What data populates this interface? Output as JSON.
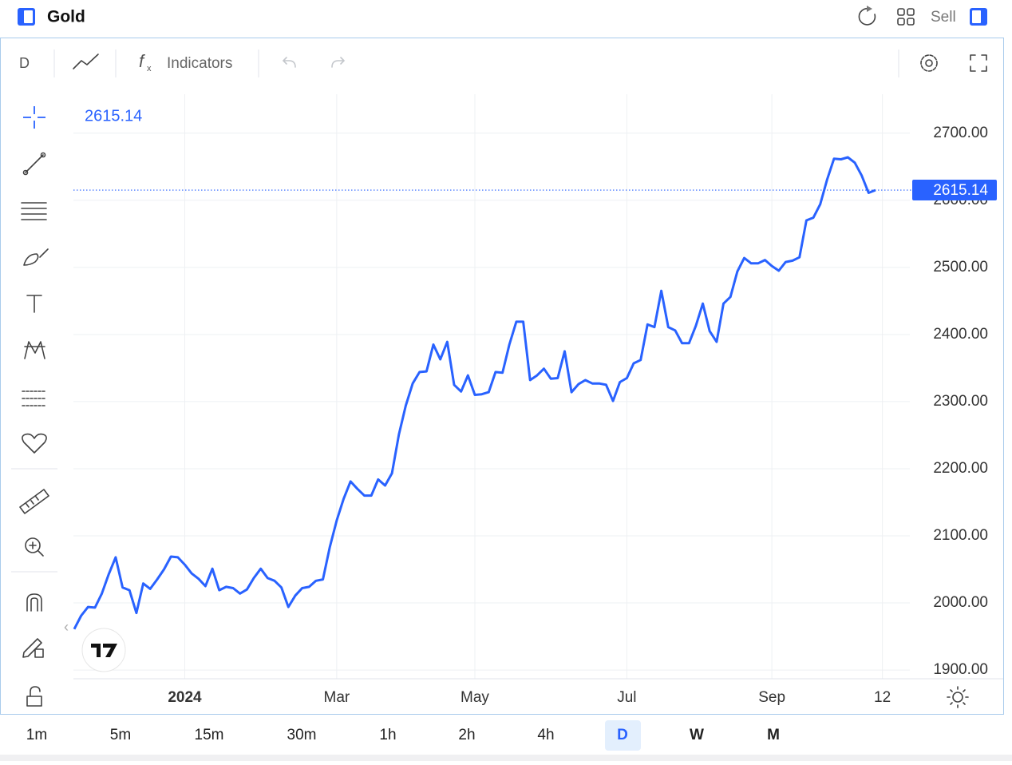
{
  "header": {
    "title": "Gold",
    "action": "Sell"
  },
  "toolbar": {
    "interval": "D",
    "indicators": "Indicators"
  },
  "chart_data": {
    "type": "line",
    "categories": [
      null,
      null,
      null,
      null,
      null,
      null,
      null,
      null,
      null,
      null,
      null,
      null,
      null,
      null,
      null,
      null,
      "2024",
      null,
      null,
      null,
      null,
      null,
      null,
      null,
      null,
      null,
      null,
      null,
      null,
      null,
      null,
      null,
      null,
      null,
      null,
      null,
      null,
      null,
      "Mar",
      null,
      null,
      null,
      null,
      null,
      null,
      null,
      null,
      null,
      null,
      null,
      null,
      null,
      null,
      null,
      null,
      null,
      null,
      null,
      "May",
      null,
      null,
      null,
      null,
      null,
      null,
      null,
      null,
      null,
      null,
      null,
      null,
      null,
      null,
      null,
      null,
      null,
      null,
      null,
      null,
      null,
      "Jul",
      null,
      null,
      null,
      null,
      null,
      null,
      null,
      null,
      null,
      null,
      null,
      null,
      null,
      null,
      null,
      null,
      null,
      null,
      null,
      null,
      "Sep",
      null,
      null,
      null,
      null,
      null,
      null,
      null,
      null,
      null,
      null,
      null,
      null,
      null,
      null,
      null,
      "12"
    ],
    "values": [
      1961,
      1981,
      1994,
      1993,
      2014,
      2043,
      2068,
      2023,
      2019,
      1985,
      2029,
      2021,
      2035,
      2050,
      2069,
      2068,
      2057,
      2044,
      2036,
      2025,
      2051,
      2019,
      2024,
      2022,
      2014,
      2020,
      2037,
      2051,
      2037,
      2033,
      2023,
      1994,
      2011,
      2022,
      2024,
      2033,
      2035,
      2083,
      2123,
      2155,
      2181,
      2170,
      2160,
      2160,
      2184,
      2175,
      2193,
      2251,
      2294,
      2327,
      2344,
      2345,
      2385,
      2363,
      2389,
      2325,
      2315,
      2339,
      2310,
      2311,
      2314,
      2344,
      2343,
      2385,
      2419,
      2419,
      2332,
      2339,
      2349,
      2334,
      2335,
      2375,
      2314,
      2326,
      2332,
      2327,
      2327,
      2325,
      2301,
      2329,
      2335,
      2357,
      2362,
      2415,
      2411,
      2465,
      2411,
      2406,
      2387,
      2387,
      2413,
      2446,
      2405,
      2389,
      2446,
      2456,
      2494,
      2514,
      2506,
      2506,
      2511,
      2502,
      2495,
      2508,
      2510,
      2515,
      2570,
      2574,
      2594,
      2631,
      2662,
      2661,
      2664,
      2656,
      2637,
      2611,
      2615.14,
      null
    ],
    "color": "#2962ff",
    "ylim": [
      1887,
      2758
    ],
    "yticks": [
      {
        "value": 1900,
        "label": "1900.00"
      },
      {
        "value": 2000,
        "label": "2000.00"
      },
      {
        "value": 2100,
        "label": "2100.00"
      },
      {
        "value": 2200,
        "label": "2200.00"
      },
      {
        "value": 2300,
        "label": "2300.00"
      },
      {
        "value": 2400,
        "label": "2400.00"
      },
      {
        "value": 2500,
        "label": "2500.00"
      },
      {
        "value": 2600,
        "label": "2600.00"
      },
      {
        "value": 2700,
        "label": "2700.00"
      }
    ],
    "grid": true
  },
  "timeframes": [
    "1m",
    "5m",
    "15m",
    "30m",
    "1h",
    "2h",
    "4h",
    "D",
    "W",
    "M"
  ]
}
